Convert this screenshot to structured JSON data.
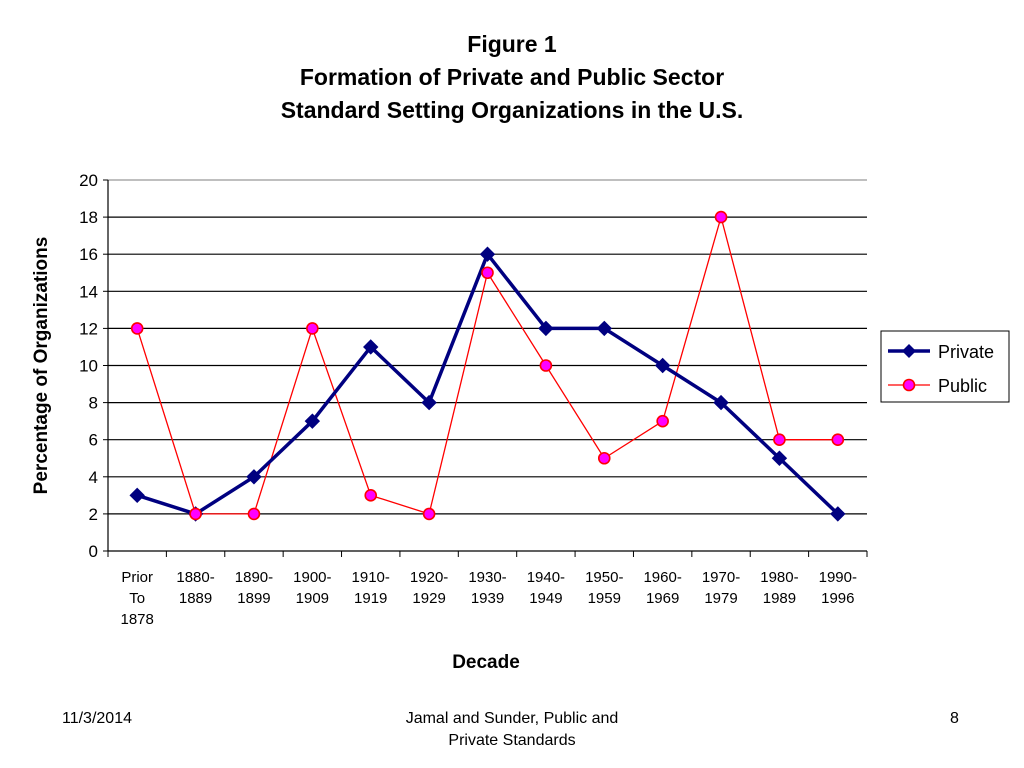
{
  "slide": {
    "title_lines": [
      "Figure 1",
      "Formation of Private and Public Sector",
      "Standard Setting Organizations in the U.S."
    ],
    "footer": {
      "date": "11/3/2014",
      "source_line1": "Jamal and Sunder, Public and",
      "source_line2": "Private Standards",
      "page": "8"
    }
  },
  "chart_data": {
    "type": "line",
    "title": "Figure 1 Formation of Private and Public Sector Standard Setting Organizations in the U.S.",
    "xlabel": "Decade",
    "ylabel": "Percentage of Organizations",
    "ylim": [
      0,
      20
    ],
    "yticks": [
      0,
      2,
      4,
      6,
      8,
      10,
      12,
      14,
      16,
      18,
      20
    ],
    "grid": true,
    "legend_position": "right",
    "categories": [
      [
        "Prior",
        "To",
        "1878"
      ],
      [
        "1880-",
        "1889"
      ],
      [
        "1890-",
        "1899"
      ],
      [
        "1900-",
        "1909"
      ],
      [
        "1910-",
        "1919"
      ],
      [
        "1920-",
        "1929"
      ],
      [
        "1930-",
        "1939"
      ],
      [
        "1940-",
        "1949"
      ],
      [
        "1950-",
        "1959"
      ],
      [
        "1960-",
        "1969"
      ],
      [
        "1970-",
        "1979"
      ],
      [
        "1980-",
        "1989"
      ],
      [
        "1990-",
        "1996"
      ]
    ],
    "series": [
      {
        "name": "Private",
        "values": [
          3,
          2,
          4,
          7,
          11,
          8,
          16,
          12,
          12,
          10,
          8,
          5,
          2
        ],
        "color": "#000080",
        "marker": "diamond"
      },
      {
        "name": "Public",
        "values": [
          12,
          2,
          2,
          12,
          3,
          2,
          15,
          10,
          5,
          7,
          18,
          6,
          6
        ],
        "color": "#ff0000",
        "marker_fill": "#ff00ff",
        "marker": "circle"
      }
    ]
  }
}
